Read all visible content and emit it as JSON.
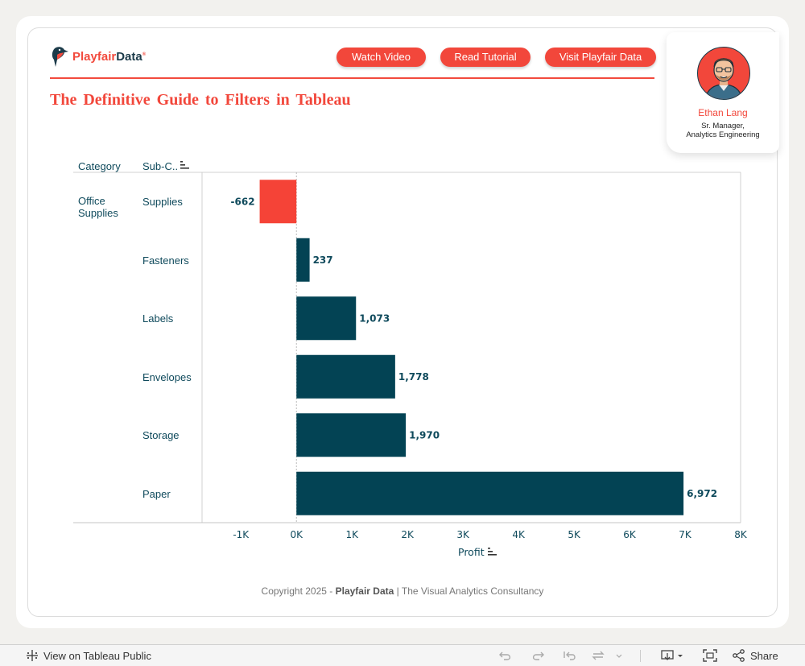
{
  "brand": {
    "name_a": "Playfair",
    "name_b": "Data",
    "mark": "®",
    "color": "#f24a3d"
  },
  "nav": {
    "watch": "Watch Video",
    "read": "Read Tutorial",
    "visit": "Visit Playfair Data"
  },
  "title": "The Definitive Guide to Filters in Tableau",
  "author": {
    "name": "Ethan Lang",
    "role_line1": "Sr. Manager,",
    "role_line2": "Analytics Engineering"
  },
  "table": {
    "col_category": "Category",
    "col_subcategory": "Sub-C..",
    "category": "Office Supplies"
  },
  "chart_data": {
    "type": "bar",
    "orientation": "horizontal",
    "categories": [
      "Supplies",
      "Fasteners",
      "Labels",
      "Envelopes",
      "Storage",
      "Paper"
    ],
    "values": [
      -662,
      237,
      1073,
      1778,
      1970,
      6972
    ],
    "data_labels": [
      "-662",
      "237",
      "1,073",
      "1,778",
      "1,970",
      "6,972"
    ],
    "xlabel": "Profit",
    "xlim": [
      -1700,
      8000
    ],
    "x_ticks": [
      -1000,
      0,
      1000,
      2000,
      3000,
      4000,
      5000,
      6000,
      7000,
      8000
    ],
    "x_tick_labels": [
      "-1K",
      "0K",
      "1K",
      "2K",
      "3K",
      "4K",
      "5K",
      "6K",
      "7K",
      "8K"
    ],
    "positive_color": "#034354",
    "negative_color": "#f54337",
    "grid": false
  },
  "footer": {
    "copyright_pre": "Copyright 2025 -",
    "copyright_brand": "Playfair Data",
    "copyright_post": "| The Visual Analytics Consultancy"
  },
  "toolbar": {
    "view_label": "View on Tableau Public",
    "share_label": "Share"
  }
}
